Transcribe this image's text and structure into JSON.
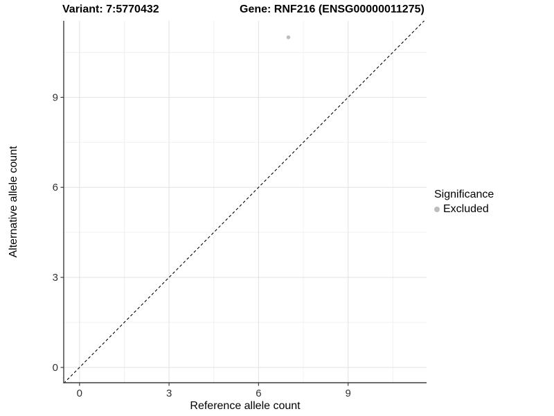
{
  "titles": {
    "variant": "Variant: 7:5770432",
    "gene": "Gene: RNF216 (ENSG00000011275)"
  },
  "x_axis": {
    "title": "Reference allele count",
    "tick_labels": [
      "0",
      "3",
      "6",
      "9"
    ]
  },
  "y_axis": {
    "title": "Alternative allele count",
    "tick_labels": [
      "0",
      "3",
      "6",
      "9"
    ]
  },
  "legend": {
    "title": "Significance",
    "items": [
      {
        "label": "Excluded",
        "color": "#bdbdbd"
      }
    ]
  },
  "colors": {
    "axis_line": "#3c3c3c",
    "tick_label": "#303030",
    "grid_major": "#e4e4e4",
    "grid_minor": "#f0f0f0",
    "reference_line": "#000000"
  },
  "chart_data": {
    "type": "scatter",
    "title": "Variant: 7:5770432 | Gene: RNF216 (ENSG00000011275)",
    "xlabel": "Reference allele count",
    "ylabel": "Alternative allele count",
    "xlim": [
      -0.53,
      11.63
    ],
    "ylim": [
      -0.51,
      11.55
    ],
    "x_major_breaks": [
      0,
      3,
      6,
      9
    ],
    "x_minor_breaks": [
      1.5,
      4.5,
      7.5,
      10.5
    ],
    "y_major_breaks": [
      0,
      3,
      6,
      9
    ],
    "y_minor_breaks": [
      1.5,
      4.5,
      7.5,
      10.5
    ],
    "grid": true,
    "legend_position": "right",
    "reference_line": {
      "kind": "identity",
      "slope": 1,
      "intercept": 0,
      "style": "dashed"
    },
    "series": [
      {
        "name": "Excluded",
        "color": "#bdbdbd",
        "points": [
          {
            "x": 7,
            "y": 11
          }
        ]
      }
    ]
  }
}
